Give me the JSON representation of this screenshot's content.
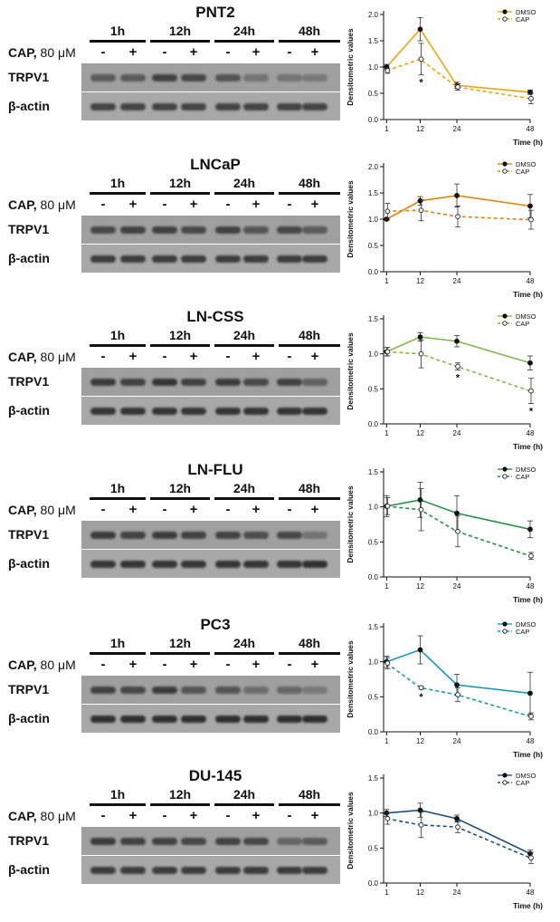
{
  "labels": {
    "timepoints": [
      "1h",
      "12h",
      "24h",
      "48h"
    ],
    "treatment_label": "CAP,",
    "treatment_dose": "80 μM",
    "signs": [
      "-",
      "+",
      "-",
      "+",
      "-",
      "+",
      "-",
      "+"
    ],
    "target_row": "TRPV1",
    "control_row": "β-actin"
  },
  "colors": {
    "PNT2": "#f2a20f",
    "LNCaP": "#e0840f",
    "LN-CSS": "#7fb94a",
    "LN-FLU": "#239242",
    "PC3": "#1b98b6",
    "DU-145": "#1d4f7d"
  },
  "chart_data": [
    {
      "type": "line",
      "title": "PNT2",
      "x": [
        1,
        12,
        24,
        48
      ],
      "xlabel": "Time (h)",
      "ylabel": "Densitometric values",
      "ylim": [
        0,
        2
      ],
      "yticks": [
        0.0,
        0.5,
        1.0,
        1.5,
        2.0
      ],
      "series": [
        {
          "name": "DMSO",
          "values": [
            1.0,
            1.72,
            0.65,
            0.52
          ],
          "err": [
            0.05,
            0.22,
            0.06,
            0.04
          ]
        },
        {
          "name": "CAP",
          "values": [
            0.93,
            1.15,
            0.62,
            0.4
          ],
          "err": [
            0.05,
            0.3,
            0.06,
            0.1
          ]
        }
      ],
      "significance": [
        {
          "x": 12,
          "label": "*"
        }
      ]
    },
    {
      "type": "line",
      "title": "LNCaP",
      "x": [
        1,
        12,
        24,
        48
      ],
      "xlabel": "Time (h)",
      "ylabel": "Densitometric values",
      "ylim": [
        0,
        2
      ],
      "yticks": [
        0.0,
        0.5,
        1.0,
        1.5,
        2.0
      ],
      "series": [
        {
          "name": "DMSO",
          "values": [
            1.0,
            1.35,
            1.45,
            1.25
          ],
          "err": [
            0.02,
            0.08,
            0.22,
            0.22
          ]
        },
        {
          "name": "CAP",
          "values": [
            1.15,
            1.17,
            1.05,
            0.99
          ],
          "err": [
            0.15,
            0.2,
            0.2,
            0.18
          ]
        }
      ],
      "significance": []
    },
    {
      "type": "line",
      "title": "LN-CSS",
      "x": [
        1,
        12,
        24,
        48
      ],
      "xlabel": "Time (h)",
      "ylabel": "Densitometric values",
      "ylim": [
        0,
        1.5
      ],
      "yticks": [
        0.0,
        0.5,
        1.0,
        1.5
      ],
      "series": [
        {
          "name": "DMSO",
          "values": [
            1.03,
            1.24,
            1.18,
            0.87
          ],
          "err": [
            0.06,
            0.06,
            0.08,
            0.1
          ]
        },
        {
          "name": "CAP",
          "values": [
            1.03,
            1.0,
            0.82,
            0.47
          ],
          "err": [
            0.06,
            0.2,
            0.05,
            0.18
          ]
        }
      ],
      "significance": [
        {
          "x": 24,
          "label": "*"
        },
        {
          "x": 48,
          "label": "*"
        }
      ]
    },
    {
      "type": "line",
      "title": "LN-FLU",
      "x": [
        1,
        12,
        24,
        48
      ],
      "xlabel": "Time (h)",
      "ylabel": "Densitometric values",
      "ylim": [
        0,
        1.5
      ],
      "yticks": [
        0.0,
        0.5,
        1.0,
        1.5
      ],
      "series": [
        {
          "name": "DMSO",
          "values": [
            1.01,
            1.1,
            0.91,
            0.68
          ],
          "err": [
            0.15,
            0.25,
            0.25,
            0.12
          ]
        },
        {
          "name": "CAP",
          "values": [
            1.01,
            0.96,
            0.65,
            0.3
          ],
          "err": [
            0.12,
            0.3,
            0.22,
            0.05
          ]
        }
      ],
      "significance": []
    },
    {
      "type": "line",
      "title": "PC3",
      "x": [
        1,
        12,
        24,
        48
      ],
      "xlabel": "Time (h)",
      "ylabel": "Densitometric values",
      "ylim": [
        0,
        1.5
      ],
      "yticks": [
        0.0,
        0.5,
        1.0,
        1.5
      ],
      "series": [
        {
          "name": "DMSO",
          "values": [
            1.0,
            1.17,
            0.67,
            0.55
          ],
          "err": [
            0.08,
            0.2,
            0.15,
            0.3
          ]
        },
        {
          "name": "CAP",
          "values": [
            0.98,
            0.63,
            0.53,
            0.22
          ],
          "err": [
            0.08,
            0.02,
            0.1,
            0.05
          ]
        }
      ],
      "significance": [
        {
          "x": 12,
          "label": "*"
        }
      ]
    },
    {
      "type": "line",
      "title": "DU-145",
      "x": [
        1,
        12,
        24,
        48
      ],
      "xlabel": "Time (h)",
      "ylabel": "Densitometric values",
      "ylim": [
        0,
        1.5
      ],
      "yticks": [
        0.0,
        0.5,
        1.0,
        1.5
      ],
      "series": [
        {
          "name": "DMSO",
          "values": [
            1.0,
            1.04,
            0.92,
            0.42
          ],
          "err": [
            0.05,
            0.1,
            0.05,
            0.05
          ]
        },
        {
          "name": "CAP",
          "values": [
            0.92,
            0.83,
            0.8,
            0.36
          ],
          "err": [
            0.08,
            0.18,
            0.08,
            0.08
          ]
        }
      ],
      "significance": []
    }
  ]
}
